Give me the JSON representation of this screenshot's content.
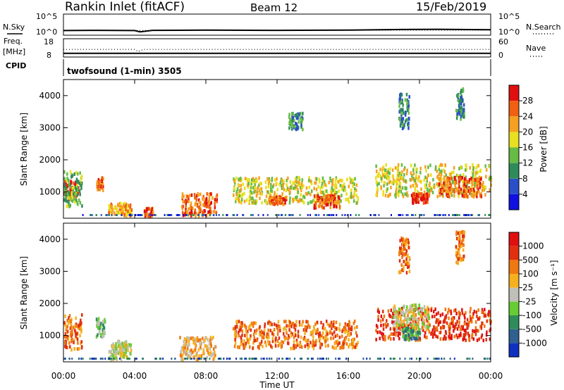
{
  "header": {
    "title": "Rankin Inlet (fitACF)",
    "beam": "Beam 12",
    "date": "15/Feb/2019"
  },
  "panel_labels": {
    "nsky": "N.Sky",
    "nsearch": "N.Search",
    "freq": "Freq.",
    "mhz": "[MHz]",
    "nave": "Nave",
    "cpid": "CPID",
    "cpid_text": "twofsound (1-min) 3505"
  },
  "chart_data": [
    {
      "type": "line",
      "panel": "noise",
      "left_ticks": [
        "10^5",
        "10^0"
      ],
      "right_ticks": [
        "10^5",
        "10^0"
      ],
      "series": [
        {
          "name": "N.Sky",
          "x_hours": [
            0,
            2,
            4,
            4.3,
            5,
            8,
            12,
            16,
            19,
            21,
            24
          ],
          "values_log10": [
            1.1,
            1.15,
            1.1,
            0.8,
            1.15,
            1.2,
            1.15,
            1.2,
            1.35,
            1.4,
            1.3
          ]
        },
        {
          "name": "N.Search",
          "x_hours": [
            0,
            24
          ],
          "values_log10": [
            1.1,
            1.2
          ]
        }
      ]
    },
    {
      "type": "line",
      "panel": "freq_nave",
      "left_ticks": [
        "18",
        "8"
      ],
      "right_ticks": [
        "60",
        "0"
      ],
      "series": [
        {
          "name": "Freq.",
          "x_hours": [
            0,
            24
          ],
          "values": [
            10,
            10
          ]
        },
        {
          "name": "Nave",
          "x_hours": [
            0,
            4,
            4.2,
            4.5,
            24
          ],
          "values": [
            25,
            25,
            18,
            25,
            25
          ]
        }
      ]
    },
    {
      "type": "heatmap",
      "panel": "power",
      "ylabel": "Slant Range [km]",
      "y_ticks": [
        1000,
        2000,
        3000,
        4000
      ],
      "ylim": [
        180,
        4500
      ],
      "colorbar_label": "Power [dB]",
      "colorbar_ticks": [
        "4",
        "8",
        "12",
        "16",
        "20",
        "24",
        "28"
      ],
      "colorbar_colors": [
        "#1010e0",
        "#2a4fc8",
        "#2f8c5a",
        "#66bb44",
        "#e8e020",
        "#f5a020",
        "#f06010",
        "#e01010"
      ],
      "blobs": [
        {
          "t0": 0.0,
          "t1": 0.8,
          "r0": 800,
          "r1": 1400,
          "level": 7
        },
        {
          "t0": 0.0,
          "t1": 1.0,
          "r0": 600,
          "r1": 1700,
          "level": 3
        },
        {
          "t0": 1.8,
          "t1": 2.2,
          "r0": 1100,
          "r1": 1500,
          "level": 6
        },
        {
          "t0": 2.5,
          "t1": 3.8,
          "r0": 300,
          "r1": 700,
          "level": 5
        },
        {
          "t0": 4.5,
          "t1": 5.0,
          "r0": 300,
          "r1": 550,
          "level": 6
        },
        {
          "t0": 6.6,
          "t1": 8.6,
          "r0": 300,
          "r1": 1000,
          "level": 6
        },
        {
          "t0": 9.5,
          "t1": 16.5,
          "r0": 700,
          "r1": 1500,
          "level": 4
        },
        {
          "t0": 11.5,
          "t1": 12.5,
          "r0": 650,
          "r1": 900,
          "level": 6
        },
        {
          "t0": 14.0,
          "t1": 15.5,
          "r0": 550,
          "r1": 950,
          "level": 6
        },
        {
          "t0": 17.5,
          "t1": 24.0,
          "r0": 900,
          "r1": 1900,
          "level": 4
        },
        {
          "t0": 19.5,
          "t1": 20.5,
          "r0": 700,
          "r1": 1000,
          "level": 7
        },
        {
          "t0": 21.0,
          "t1": 23.5,
          "r0": 900,
          "r1": 1500,
          "level": 6
        },
        {
          "t0": 18.8,
          "t1": 19.4,
          "r0": 3000,
          "r1": 4100,
          "level": 2
        },
        {
          "t0": 22.0,
          "t1": 22.5,
          "r0": 3300,
          "r1": 4300,
          "level": 2
        },
        {
          "t0": 12.6,
          "t1": 13.4,
          "r0": 3000,
          "r1": 3500,
          "level": 2
        }
      ]
    },
    {
      "type": "heatmap",
      "panel": "velocity",
      "ylabel": "Slant Range [km]",
      "y_ticks": [
        1000,
        2000,
        3000,
        4000
      ],
      "ylim": [
        180,
        4500
      ],
      "colorbar_label": "Velocity [m s⁻¹]",
      "colorbar_ticks": [
        "1000",
        "500",
        "100",
        "25",
        "-25",
        "-100",
        "-500",
        "-1000"
      ],
      "colorbar_colors": [
        "#1030c0",
        "#2f6090",
        "#2f8c5a",
        "#66cc33",
        "#c0c0b8",
        "#f5b020",
        "#f07810",
        "#e03010",
        "#e01010"
      ],
      "x_ticks": [
        "00:00",
        "04:00",
        "08:00",
        "12:00",
        "16:00",
        "20:00",
        "00:00"
      ],
      "xlabel": "Time UT",
      "blobs": [
        {
          "t0": 0.0,
          "t1": 1.0,
          "r0": 600,
          "r1": 1700,
          "level": 6
        },
        {
          "t0": 1.8,
          "t1": 2.3,
          "r0": 1000,
          "r1": 1600,
          "level": 3
        },
        {
          "t0": 2.5,
          "t1": 3.8,
          "r0": 300,
          "r1": 800,
          "level": 4
        },
        {
          "t0": 3.0,
          "t1": 3.5,
          "r0": 600,
          "r1": 900,
          "level": 4
        },
        {
          "t0": 6.5,
          "t1": 8.5,
          "r0": 300,
          "r1": 1000,
          "level": 5
        },
        {
          "t0": 9.5,
          "t1": 16.5,
          "r0": 650,
          "r1": 1500,
          "level": 6
        },
        {
          "t0": 17.5,
          "t1": 24.0,
          "r0": 900,
          "r1": 1900,
          "level": 7
        },
        {
          "t0": 18.5,
          "t1": 20.5,
          "r0": 1200,
          "r1": 2000,
          "level": 4
        },
        {
          "t0": 19.0,
          "t1": 20.0,
          "r0": 900,
          "r1": 1300,
          "level": 2
        },
        {
          "t0": 18.8,
          "t1": 19.4,
          "r0": 3000,
          "r1": 4100,
          "level": 6
        },
        {
          "t0": 22.0,
          "t1": 22.5,
          "r0": 3300,
          "r1": 4300,
          "level": 6
        }
      ]
    }
  ]
}
